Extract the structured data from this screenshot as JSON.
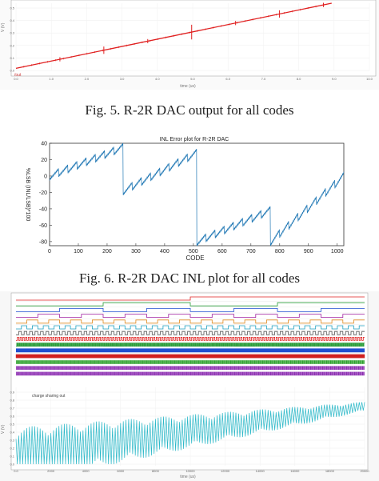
{
  "captions": {
    "fig5": "Fig. 5.   R-2R DAC output for all codes",
    "fig6": "Fig. 6.   R-2R DAC INL plot for all codes"
  },
  "chart_data": [
    {
      "id": "fig5",
      "type": "line",
      "ylabel": "V (V)",
      "xlabel": "time (us)",
      "x_ticks": [
        "0.0",
        "1.0",
        "2.0",
        "3.0",
        "4.0",
        "5.0",
        "6.0",
        "7.0",
        "8.0",
        "9.0",
        "10.0"
      ],
      "y_ticks": [
        "0.5",
        "0.4",
        "0.3",
        "0.2",
        "0.1",
        "0.0"
      ],
      "series": [
        {
          "values": [
            [
              0,
              0.0
            ],
            [
              9.2,
              0.62
            ]
          ],
          "color": "#e02020"
        }
      ],
      "glitches": [
        {
          "x": 1.28,
          "amp": 0.02
        },
        {
          "x": 2.56,
          "amp": 0.035
        },
        {
          "x": 3.84,
          "amp": 0.02
        },
        {
          "x": 5.12,
          "amp": 0.07
        },
        {
          "x": 6.4,
          "amp": 0.02
        },
        {
          "x": 7.68,
          "amp": 0.035
        },
        {
          "x": 8.96,
          "amp": 0.02
        }
      ],
      "xlim": [
        0,
        10.3
      ],
      "ylim": [
        -0.02,
        0.62
      ],
      "legend_tag": "/out"
    },
    {
      "id": "fig6",
      "type": "line",
      "title": "INL Error plot for R-2R DAC",
      "xlabel": "CODE",
      "ylabel": "%LSB (INL/LSB)*100",
      "x_ticks": [
        0,
        100,
        200,
        300,
        400,
        500,
        600,
        700,
        800,
        900,
        1000
      ],
      "y_ticks": [
        -80,
        -60,
        -40,
        -20,
        0,
        20,
        40
      ],
      "xlim": [
        0,
        1023
      ],
      "ylim": [
        -85,
        40
      ],
      "segments": [
        {
          "start": 0,
          "end": 255,
          "y_start": 0,
          "y_end": 35
        },
        {
          "start": 256,
          "end": 511,
          "y_start": -18,
          "y_end": 28
        },
        {
          "start": 512,
          "end": 767,
          "y_start": -80,
          "y_end": -42
        },
        {
          "start": 768,
          "end": 1023,
          "y_start": -80,
          "y_end": 0
        }
      ],
      "color": "#1f77b4"
    },
    {
      "id": "fig7",
      "type": "line",
      "panel_label": "charge sharing out",
      "ylabel": "V (V)",
      "xlabel": "time (us)",
      "digital_trace_count": 14,
      "digital_colors": [
        "#e02020",
        "#2a9d3a",
        "#1f4fd0",
        "#a020a0",
        "#e08a20",
        "#20a0c0",
        "#555555",
        "#e02020",
        "#2a9d3a",
        "#1f4fd0",
        "#d02020",
        "#2aa02a",
        "#8a2ab0",
        "#8a2ab0"
      ],
      "analog_color": "#2bb8c8",
      "y_ticks": [
        "0.9",
        "0.8",
        "0.7",
        "0.6",
        "0.5",
        "0.4",
        "0.3",
        "0.2",
        "0.1",
        "0.0"
      ],
      "x_ticks": [
        "0.0",
        "2000",
        "4000",
        "6000",
        "8000",
        "10000",
        "12000",
        "14000",
        "16000",
        "18000",
        "20000"
      ],
      "xlim": [
        0,
        20000
      ],
      "ylim": [
        0,
        0.95
      ]
    }
  ]
}
